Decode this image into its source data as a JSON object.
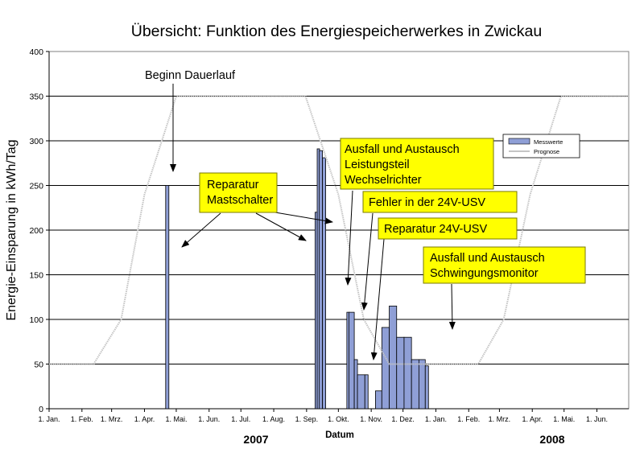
{
  "chart_data": {
    "type": "bar",
    "title": "Übersicht: Funktion des Energiespeicherwerkes in Zwickau",
    "xlabel": "Datum",
    "ylabel": "Energie-Einsparung in kWh/Tag",
    "ylim": [
      0,
      400
    ],
    "yticks": [
      0,
      50,
      100,
      150,
      200,
      250,
      300,
      350,
      400
    ],
    "grid": "horizontal",
    "legend_position": "top-right",
    "x_start": "2007-01-01",
    "x_end": "2008-07-01",
    "x_tick_labels": [
      "1. Jan.",
      "1. Feb.",
      "1. Mrz.",
      "1. Apr.",
      "1. Mai.",
      "1. Jun.",
      "1. Jul.",
      "1. Aug.",
      "1. Sep.",
      "1. Okt.",
      "1. Nov.",
      "1. Dez.",
      "1. Jan.",
      "1. Feb.",
      "1. Mrz.",
      "1. Apr.",
      "1. Mai.",
      "1. Jun."
    ],
    "x_tick_dates": [
      "2007-01-01",
      "2007-02-01",
      "2007-03-01",
      "2007-04-01",
      "2007-05-01",
      "2007-06-01",
      "2007-07-01",
      "2007-08-01",
      "2007-09-01",
      "2007-10-01",
      "2007-11-01",
      "2007-12-01",
      "2008-01-01",
      "2008-02-01",
      "2008-03-01",
      "2008-04-01",
      "2008-05-01",
      "2008-06-01"
    ],
    "year_labels": [
      "2007",
      "2008"
    ],
    "series": [
      {
        "name": "Messwerte",
        "kind": "bar",
        "color": "#8f9fd6",
        "points": [
          {
            "x": "2007-04-21",
            "y": 250
          },
          {
            "x": "2007-09-09",
            "y": 220
          },
          {
            "x": "2007-09-11",
            "y": 291
          },
          {
            "x": "2007-09-13",
            "y": 289
          },
          {
            "x": "2007-09-16",
            "y": 281
          },
          {
            "x": "2007-10-09",
            "y": 108
          },
          {
            "x": "2007-10-11",
            "y": 108
          },
          {
            "x": "2007-10-16",
            "y": 55
          },
          {
            "x": "2007-10-19",
            "y": 38
          },
          {
            "x": "2007-10-26",
            "y": 38
          },
          {
            "x": "2007-11-05",
            "y": 20
          },
          {
            "x": "2007-11-11",
            "y": 91
          },
          {
            "x": "2007-11-18",
            "y": 115
          },
          {
            "x": "2007-11-25",
            "y": 80
          },
          {
            "x": "2007-12-02",
            "y": 80
          },
          {
            "x": "2007-12-09",
            "y": 55
          },
          {
            "x": "2007-12-16",
            "y": 55
          },
          {
            "x": "2007-12-22",
            "y": 48
          }
        ]
      },
      {
        "name": "Prognose",
        "kind": "line",
        "color": "#c4c4c4",
        "points": [
          {
            "x": "2007-01-01",
            "y": 50
          },
          {
            "x": "2007-02-12",
            "y": 50
          },
          {
            "x": "2007-03-10",
            "y": 100
          },
          {
            "x": "2007-04-01",
            "y": 240
          },
          {
            "x": "2007-05-01",
            "y": 350
          },
          {
            "x": "2007-08-31",
            "y": 350
          },
          {
            "x": "2007-10-01",
            "y": 240
          },
          {
            "x": "2007-10-25",
            "y": 100
          },
          {
            "x": "2007-11-18",
            "y": 50
          },
          {
            "x": "2008-02-10",
            "y": 50
          },
          {
            "x": "2008-03-05",
            "y": 100
          },
          {
            "x": "2008-03-30",
            "y": 240
          },
          {
            "x": "2008-04-28",
            "y": 350
          },
          {
            "x": "2008-07-01",
            "y": 350
          }
        ]
      }
    ],
    "annotations": [
      {
        "lines": [
          "Beginn Dauerlauf"
        ],
        "boxed": false
      },
      {
        "lines": [
          "Reparatur",
          "Mastschalter"
        ],
        "boxed": true
      },
      {
        "lines": [
          "Ausfall und Austausch",
          "Leistungsteil",
          "Wechselrichter"
        ],
        "boxed": true
      },
      {
        "lines": [
          "Fehler in der 24V-USV"
        ],
        "boxed": true
      },
      {
        "lines": [
          "Reparatur 24V-USV"
        ],
        "boxed": true
      },
      {
        "lines": [
          "Ausfall und Austausch",
          "Schwingungsmonitor"
        ],
        "boxed": true
      }
    ]
  }
}
